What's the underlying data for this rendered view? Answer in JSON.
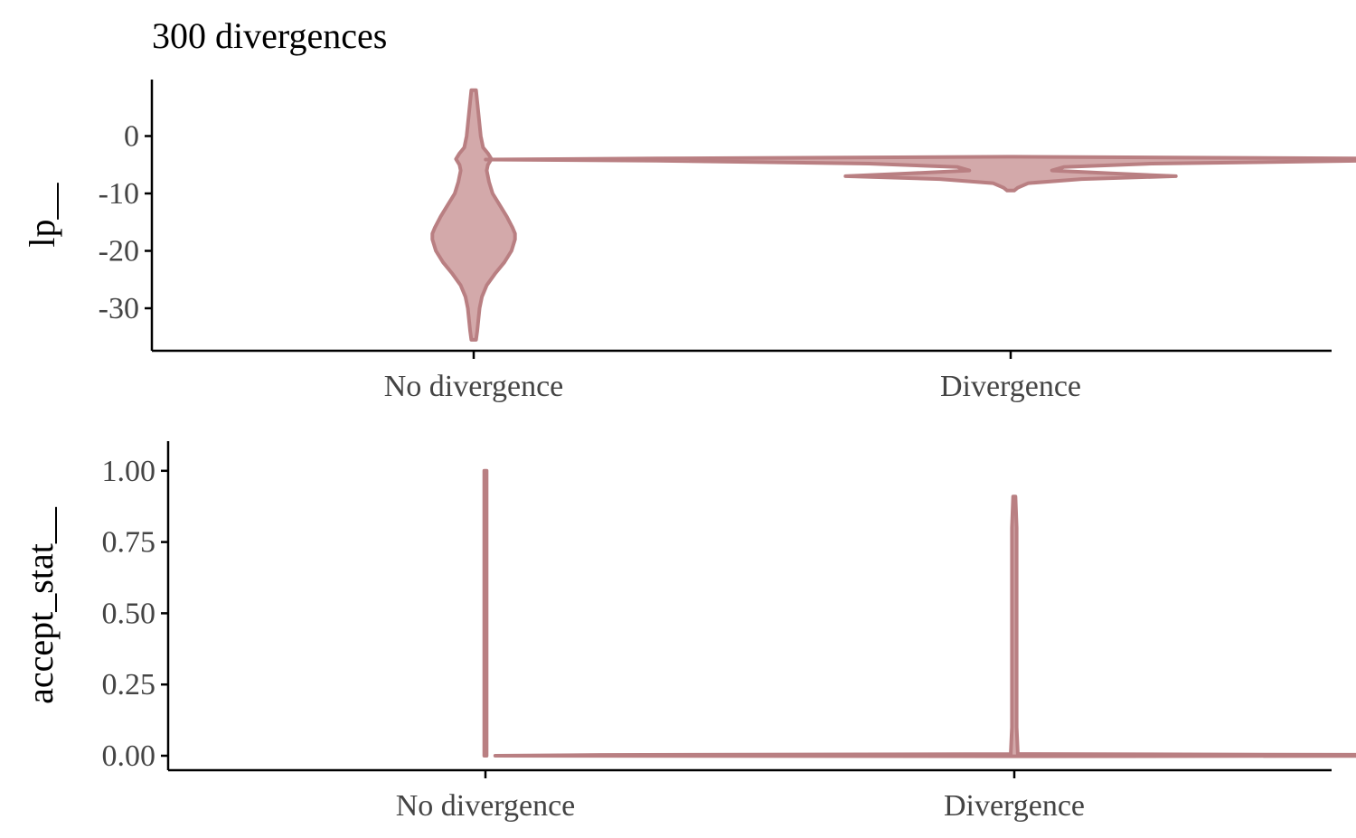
{
  "chart_data": [
    {
      "type": "violin",
      "title": "300 divergences",
      "ylabel": "lp__",
      "xlabel": "",
      "categories": [
        "No divergence",
        "Divergence"
      ],
      "yticks": [
        0,
        -10,
        -20,
        -30
      ],
      "ylim": [
        -37,
        10
      ],
      "grid": false,
      "legend": "none",
      "colors": {
        "fill": "#d3a9aa",
        "outline": "#b97f82"
      },
      "series": [
        {
          "category": "No divergence",
          "density": [
            {
              "y": 8,
              "w": 0.002
            },
            {
              "y": 6,
              "w": 0.003
            },
            {
              "y": 4,
              "w": 0.004
            },
            {
              "y": 2,
              "w": 0.005
            },
            {
              "y": 0,
              "w": 0.006
            },
            {
              "y": -2,
              "w": 0.008
            },
            {
              "y": -3,
              "w": 0.012
            },
            {
              "y": -4,
              "w": 0.015
            },
            {
              "y": -5,
              "w": 0.012
            },
            {
              "y": -6,
              "w": 0.011
            },
            {
              "y": -8,
              "w": 0.013
            },
            {
              "y": -10,
              "w": 0.016
            },
            {
              "y": -12,
              "w": 0.022
            },
            {
              "y": -14,
              "w": 0.028
            },
            {
              "y": -16,
              "w": 0.033
            },
            {
              "y": -17,
              "w": 0.035
            },
            {
              "y": -18,
              "w": 0.035
            },
            {
              "y": -20,
              "w": 0.032
            },
            {
              "y": -22,
              "w": 0.026
            },
            {
              "y": -24,
              "w": 0.018
            },
            {
              "y": -26,
              "w": 0.011
            },
            {
              "y": -28,
              "w": 0.007
            },
            {
              "y": -30,
              "w": 0.005
            },
            {
              "y": -32,
              "w": 0.004
            },
            {
              "y": -34,
              "w": 0.003
            },
            {
              "y": -35.5,
              "w": 0.002
            }
          ]
        },
        {
          "category": "Divergence",
          "density": [
            {
              "y": -3.6,
              "w": 0.003
            },
            {
              "y": -3.9,
              "w": 0.3
            },
            {
              "y": -4.1,
              "w": 0.445
            },
            {
              "y": -4.3,
              "w": 0.3
            },
            {
              "y": -4.8,
              "w": 0.12
            },
            {
              "y": -5.4,
              "w": 0.045
            },
            {
              "y": -6.0,
              "w": 0.035
            },
            {
              "y": -6.5,
              "w": 0.085
            },
            {
              "y": -7.0,
              "w": 0.14
            },
            {
              "y": -7.5,
              "w": 0.06
            },
            {
              "y": -8.2,
              "w": 0.015
            },
            {
              "y": -9.0,
              "w": 0.006
            },
            {
              "y": -9.5,
              "w": 0.003
            }
          ]
        }
      ]
    },
    {
      "type": "violin",
      "title": "",
      "ylabel": "accept_stat__",
      "xlabel": "",
      "categories": [
        "No divergence",
        "Divergence"
      ],
      "yticks": [
        "0.00",
        "0.25",
        "0.50",
        "0.75",
        "1.00"
      ],
      "ylim": [
        -0.05,
        1.1
      ],
      "grid": false,
      "legend": "none",
      "colors": {
        "fill": "#d3a9aa",
        "outline": "#b97f82"
      },
      "series": [
        {
          "category": "No divergence",
          "density": [
            {
              "y": 0.0,
              "w": 0.001
            },
            {
              "y": 0.5,
              "w": 0.001
            },
            {
              "y": 1.0,
              "w": 0.001
            }
          ]
        },
        {
          "category": "Divergence",
          "density": [
            {
              "y": -0.002,
              "w": 0.001
            },
            {
              "y": 0.0,
              "w": 0.44
            },
            {
              "y": 0.003,
              "w": 0.35
            },
            {
              "y": 0.006,
              "w": 0.003
            },
            {
              "y": 0.1,
              "w": 0.002
            },
            {
              "y": 0.4,
              "w": 0.002
            },
            {
              "y": 0.61,
              "w": 0.002
            },
            {
              "y": 0.8,
              "w": 0.002
            },
            {
              "y": 0.91,
              "w": 0.001
            }
          ]
        }
      ]
    }
  ]
}
